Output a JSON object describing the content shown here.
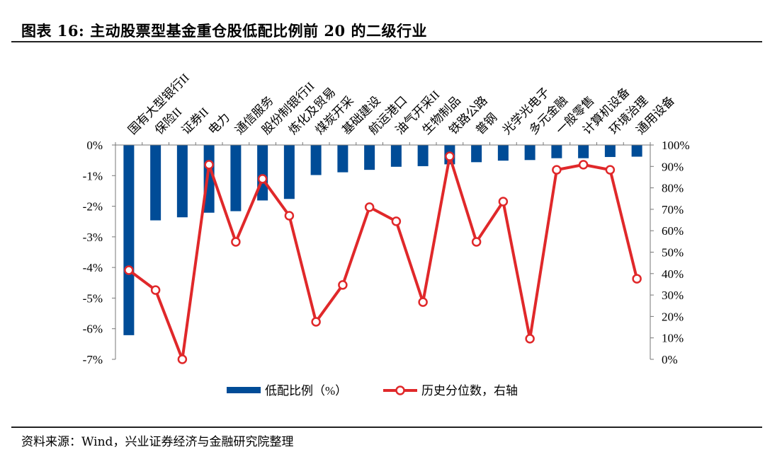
{
  "header": {
    "title": "图表 16:  主动股票型基金重仓股低配比例前 20 的二级行业"
  },
  "footer": {
    "source": "资料来源：Wind，兴业证券经济与金融研究院整理"
  },
  "colors": {
    "bar": "#004C97",
    "line": "#E0282A"
  },
  "chart_data": {
    "type": "bar+line",
    "categories": [
      "国有大型银行II",
      "保险II",
      "证券II",
      "电力",
      "通信服务",
      "股份制银行II",
      "炼化及贸易",
      "煤炭开采",
      "基础建设",
      "航运港口",
      "油气开采II",
      "生物制品",
      "铁路公路",
      "普钢",
      "光学光电子",
      "多元金融",
      "一般零售",
      "计算机设备",
      "环境治理",
      "通用设备"
    ],
    "series": [
      {
        "name": "低配比例（%）",
        "type": "bar",
        "axis": "left",
        "values": [
          -6.2,
          -2.45,
          -2.35,
          -2.2,
          -2.15,
          -1.8,
          -1.75,
          -0.97,
          -0.88,
          -0.8,
          -0.7,
          -0.68,
          -0.62,
          -0.55,
          -0.5,
          -0.48,
          -0.42,
          -0.42,
          -0.38,
          -0.37
        ]
      },
      {
        "name": "历史分位数，右轴",
        "type": "line",
        "axis": "right",
        "values": [
          41.6,
          32.3,
          0,
          90.8,
          54.8,
          84.2,
          67,
          17.5,
          34.7,
          71,
          64.4,
          26.7,
          94.7,
          54.8,
          73.6,
          9.6,
          88.4,
          90.8,
          88.4,
          37.6
        ]
      }
    ],
    "left_axis": {
      "ylim": [
        -7,
        0
      ],
      "ticks": [
        "0%",
        "-1%",
        "-2%",
        "-3%",
        "-4%",
        "-5%",
        "-6%",
        "-7%"
      ]
    },
    "right_axis": {
      "ylim": [
        0,
        100
      ],
      "ticks": [
        "100%",
        "90%",
        "80%",
        "70%",
        "60%",
        "50%",
        "40%",
        "30%",
        "20%",
        "10%",
        "0%"
      ]
    },
    "legend": "bottom",
    "grid": false
  }
}
